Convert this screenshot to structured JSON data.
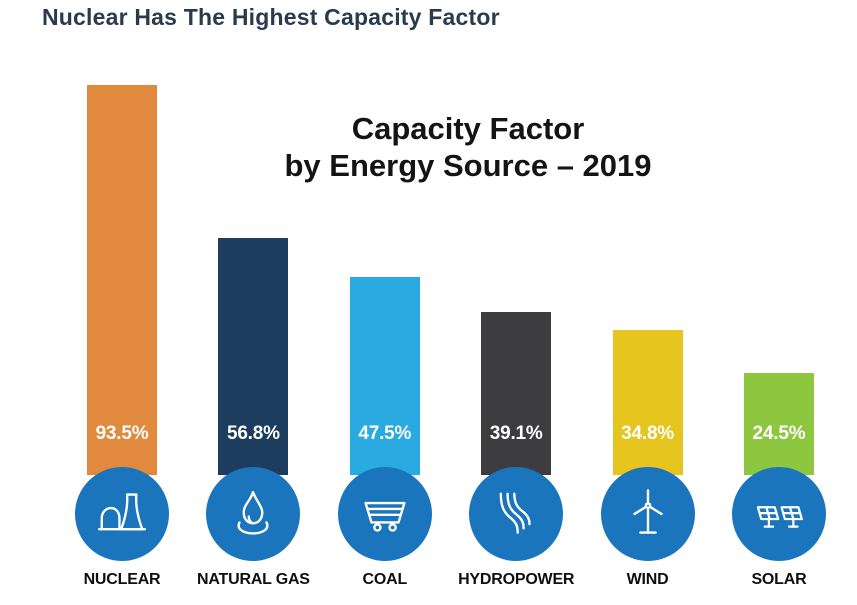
{
  "page": {
    "heading": "Nuclear Has The Highest Capacity Factor"
  },
  "chart_data": {
    "type": "bar",
    "title": "Capacity Factor by Energy Source – 2019",
    "title_lines": [
      "Capacity Factor",
      "by Energy Source – 2019"
    ],
    "categories": [
      "NUCLEAR",
      "NATURAL GAS",
      "COAL",
      "HYDROPOWER",
      "WIND",
      "SOLAR"
    ],
    "values": [
      93.5,
      56.8,
      47.5,
      39.1,
      34.8,
      24.5
    ],
    "value_labels": [
      "93.5%",
      "56.8%",
      "47.5%",
      "39.1%",
      "34.8%",
      "24.5%"
    ],
    "unit": "%",
    "ylim": [
      0,
      100
    ],
    "grid": false,
    "legend_position": "none",
    "bar_colors": [
      "#E18A3E",
      "#1C3D5E",
      "#29ABE2",
      "#3D3D3F",
      "#E6C51F",
      "#8DC63F"
    ],
    "value_label_color": "#FFFFFF",
    "icon_circle_color": "#1B75BC",
    "icons": [
      "cooling-tower-icon",
      "gas-flame-icon",
      "coal-cart-icon",
      "hydro-dam-icon",
      "wind-turbine-icon",
      "solar-panel-icon"
    ]
  },
  "colors": {
    "heading": "#2A3B4D",
    "background": "#FFFFFF"
  }
}
